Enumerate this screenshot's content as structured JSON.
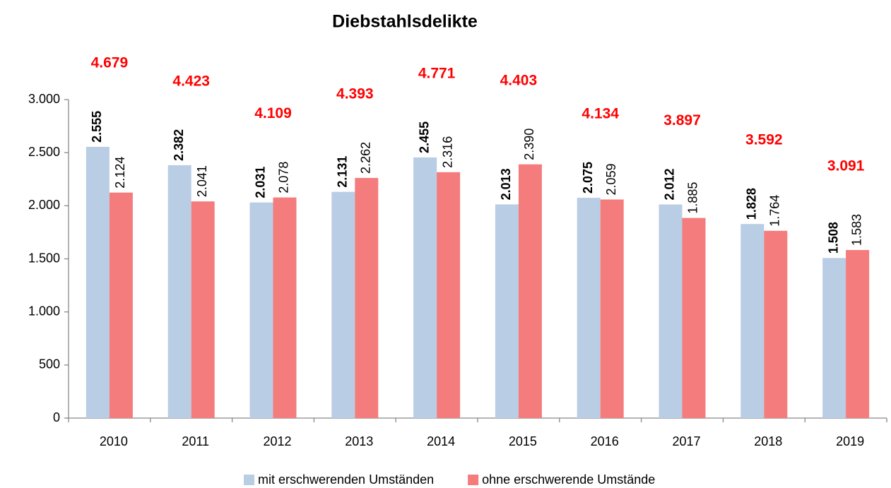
{
  "chart_data": {
    "type": "bar",
    "title": "Diebstahlsdelikte",
    "categories": [
      "2010",
      "2011",
      "2012",
      "2013",
      "2014",
      "2015",
      "2016",
      "2017",
      "2018",
      "2019"
    ],
    "series": [
      {
        "name": "mit erschwerenden Umständen",
        "color": "#b9cde5",
        "values": [
          2555,
          2382,
          2031,
          2131,
          2455,
          2013,
          2075,
          2012,
          1828,
          1508
        ],
        "value_labels": [
          "2.555",
          "2.382",
          "2.031",
          "2.131",
          "2.455",
          "2.013",
          "2.075",
          "2.012",
          "1.828",
          "1.508"
        ]
      },
      {
        "name": "ohne erschwerende Umstände",
        "color": "#f47c7c",
        "values": [
          2124,
          2041,
          2078,
          2262,
          2316,
          2390,
          2059,
          1885,
          1764,
          1583
        ],
        "value_labels": [
          "2.124",
          "2.041",
          "2.078",
          "2.262",
          "2.316",
          "2.390",
          "2.059",
          "1.885",
          "1.764",
          "1.583"
        ]
      }
    ],
    "totals": {
      "color": "#ff0000",
      "values": [
        4679,
        4423,
        4109,
        4393,
        4771,
        4403,
        4134,
        3897,
        3592,
        3091
      ],
      "value_labels": [
        "4.679",
        "4.423",
        "4.109",
        "4.393",
        "4.771",
        "4.403",
        "4.134",
        "3.897",
        "3.592",
        "3.091"
      ]
    },
    "ylim": [
      0,
      3000
    ],
    "yticks": [
      0,
      500,
      {
        "value": 1000,
        "label": "1.000"
      },
      {
        "value": 1500,
        "label": "1.500"
      },
      {
        "value": 2000,
        "label": "2.000"
      },
      {
        "value": 2500,
        "label": "2.500"
      },
      {
        "value": 3000,
        "label": "3.000"
      }
    ],
    "grid": false,
    "legend": "bottom"
  }
}
